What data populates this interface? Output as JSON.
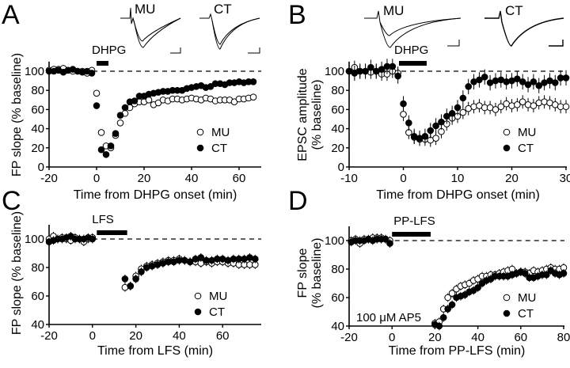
{
  "chart_data": [
    {
      "panel": "A",
      "type": "scatter",
      "xlabel": "Time from DHPG onset (min)",
      "ylabel": [
        "FP slope (% baseline)"
      ],
      "xticks": [
        -20,
        0,
        20,
        40,
        60
      ],
      "yticks": [
        0,
        20,
        40,
        60,
        80,
        100
      ],
      "xlim": [
        -20,
        69
      ],
      "ylim": [
        0,
        110
      ],
      "reference_line": 100,
      "treatment": {
        "label": "DHPG",
        "start": 0,
        "end": 5
      },
      "inset_labels": [
        "MU",
        "CT"
      ],
      "legend": [
        "MU",
        "CT"
      ],
      "legend_position": "bottom-right",
      "x": [
        -20,
        -18,
        -16,
        -14,
        -12,
        -10,
        -8,
        -6,
        -4,
        -2,
        0,
        2,
        4,
        6,
        8,
        10,
        12,
        14,
        16,
        18,
        20,
        22,
        24,
        26,
        28,
        30,
        32,
        34,
        36,
        38,
        40,
        42,
        44,
        46,
        48,
        50,
        52,
        54,
        56,
        58,
        60,
        62,
        64,
        66
      ],
      "series": [
        {
          "name": "MU",
          "marker": "open",
          "err": 3,
          "values": [
            101,
            102,
            102,
            103,
            101,
            100,
            100,
            100,
            98,
            101,
            77,
            36,
            22,
            20,
            33,
            46,
            56,
            62,
            66,
            68,
            68,
            70,
            65,
            67,
            70,
            69,
            71,
            71,
            70,
            71,
            72,
            71,
            70,
            72,
            71,
            69,
            70,
            70,
            70,
            68,
            71,
            71,
            72,
            73
          ]
        },
        {
          "name": "CT",
          "marker": "filled",
          "err": 3,
          "values": [
            100,
            100,
            101,
            99,
            101,
            102,
            100,
            99,
            100,
            98,
            64,
            18,
            13,
            22,
            35,
            54,
            62,
            68,
            69,
            74,
            74,
            76,
            77,
            78,
            79,
            79,
            80,
            80,
            80,
            82,
            83,
            84,
            85,
            83,
            84,
            87,
            87,
            86,
            88,
            88,
            89,
            88,
            89,
            89
          ]
        }
      ]
    },
    {
      "panel": "B",
      "type": "scatter",
      "xlabel": "Time from DHPG onset (min)",
      "ylabel": [
        "EPSC amplitude",
        "(% baseline)"
      ],
      "xticks": [
        -10,
        0,
        10,
        20,
        30
      ],
      "yticks": [
        0,
        20,
        40,
        60,
        80,
        100
      ],
      "xlim": [
        -10,
        30
      ],
      "ylim": [
        0,
        110
      ],
      "reference_line": 100,
      "treatment": {
        "label": "DHPG",
        "start": -0.8,
        "end": 4.3
      },
      "inset_labels": [
        "MU",
        "CT"
      ],
      "legend": [
        "MU",
        "CT"
      ],
      "legend_position": "bottom-right",
      "x": [
        -10,
        -9,
        -8,
        -7,
        -6,
        -5,
        -4,
        -3,
        -2,
        -1,
        0,
        1,
        2,
        3,
        4,
        5,
        6,
        7,
        8,
        9,
        10,
        11,
        12,
        13,
        14,
        15,
        16,
        17,
        18,
        19,
        20,
        21,
        22,
        23,
        24,
        25,
        26,
        27,
        28,
        29,
        30
      ],
      "series": [
        {
          "name": "MU",
          "marker": "open",
          "err": 7,
          "values": [
            100,
            104,
            100,
            100,
            99,
            100,
            97,
            97,
            100,
            98,
            55,
            36,
            31,
            29,
            29,
            28,
            30,
            37,
            45,
            51,
            53,
            57,
            61,
            63,
            64,
            62,
            62,
            60,
            63,
            66,
            64,
            65,
            68,
            65,
            64,
            67,
            68,
            67,
            65,
            63,
            63
          ]
        },
        {
          "name": "CT",
          "marker": "filled",
          "err": 8,
          "values": [
            100,
            98,
            100,
            100,
            104,
            100,
            102,
            105,
            105,
            95,
            66,
            46,
            32,
            30,
            32,
            38,
            43,
            47,
            53,
            56,
            62,
            72,
            84,
            89,
            91,
            94,
            88,
            90,
            91,
            89,
            90,
            92,
            89,
            86,
            89,
            85,
            88,
            90,
            88,
            93,
            93
          ]
        }
      ]
    },
    {
      "panel": "C",
      "type": "scatter",
      "xlabel": "Time from LFS (min)",
      "ylabel": [
        "FP slope (% baseline)"
      ],
      "xticks": [
        -20,
        0,
        20,
        40,
        60
      ],
      "yticks": [
        40,
        60,
        80,
        100
      ],
      "xlim": [
        -20,
        77
      ],
      "ylim": [
        40,
        110
      ],
      "reference_line": 100,
      "treatment": {
        "label": "LFS",
        "start": 2,
        "end": 16
      },
      "legend": [
        "MU",
        "CT"
      ],
      "legend_position": "bottom-right",
      "x": [
        -20,
        -18,
        -16,
        -14,
        -12,
        -10,
        -8,
        -6,
        -4,
        -2,
        0,
        15,
        17.5,
        20,
        22.5,
        25,
        27.5,
        30,
        32.5,
        35,
        37.5,
        40,
        42.5,
        45,
        47.5,
        50,
        52.5,
        55,
        57.5,
        60,
        62.5,
        65,
        67.5,
        70,
        72.5,
        75
      ],
      "series": [
        {
          "name": "MU",
          "marker": "open",
          "err": 3,
          "values": [
            100,
            102,
            100,
            101,
            100,
            99,
            101,
            100,
            98,
            100,
            101,
            66,
            67,
            74,
            79,
            81,
            82,
            83,
            84,
            85,
            85,
            86,
            85,
            84,
            84,
            83,
            84,
            83,
            84,
            84,
            83,
            83,
            82,
            82,
            82,
            82
          ]
        },
        {
          "name": "CT",
          "marker": "filled",
          "err": 3,
          "values": [
            98,
            99,
            100,
            100,
            101,
            102,
            100,
            100,
            100,
            101,
            100,
            72,
            67,
            72,
            77,
            80,
            81,
            82,
            83,
            84,
            84,
            85,
            85,
            84,
            86,
            87,
            85,
            85,
            86,
            86,
            85,
            86,
            86,
            86,
            87,
            86
          ]
        }
      ]
    },
    {
      "panel": "D",
      "type": "scatter",
      "xlabel": "Time from  PP-LFS  (min)",
      "ylabel": [
        "FP slope",
        "(% baseline)"
      ],
      "xticks": [
        -20,
        0,
        20,
        40,
        60,
        80
      ],
      "yticks": [
        40,
        60,
        80,
        100
      ],
      "xlim": [
        -20,
        80
      ],
      "ylim": [
        40,
        110
      ],
      "reference_line": 100,
      "treatment": {
        "label": "PP-LFS",
        "start": 0,
        "end": 18
      },
      "annotation": "100 μM AP5",
      "legend": [
        "MU",
        "CT"
      ],
      "legend_position": "bottom-right",
      "x": [
        -19,
        -17,
        -15,
        -13,
        -11,
        -9,
        -7,
        -5,
        -3,
        -1,
        20,
        22,
        24,
        26,
        28,
        30,
        32,
        34,
        36,
        38,
        40,
        42,
        44,
        46,
        48,
        50,
        52,
        54,
        56,
        58,
        60,
        62,
        64,
        66,
        68,
        70,
        72,
        74,
        76,
        78,
        80
      ],
      "series": [
        {
          "name": "MU",
          "marker": "open",
          "err": 3,
          "values": [
            100,
            101,
            98,
            101,
            101,
            102,
            102,
            102,
            101,
            100,
            42,
            43,
            52,
            60,
            63,
            66,
            68,
            69,
            70,
            72,
            73,
            75,
            75,
            76,
            76,
            77,
            78,
            79,
            80,
            77,
            78,
            78,
            77,
            79,
            78,
            79,
            80,
            81,
            80,
            80,
            81
          ]
        },
        {
          "name": "CT",
          "marker": "filled",
          "err": 3,
          "values": [
            99,
            100,
            100,
            100,
            101,
            100,
            101,
            101,
            101,
            98,
            41,
            40,
            46,
            52,
            55,
            60,
            61,
            62,
            64,
            65,
            67,
            70,
            72,
            73,
            75,
            75,
            75,
            75,
            76,
            77,
            78,
            77,
            74,
            74,
            75,
            76,
            76,
            79,
            77,
            76,
            77
          ]
        }
      ]
    }
  ]
}
